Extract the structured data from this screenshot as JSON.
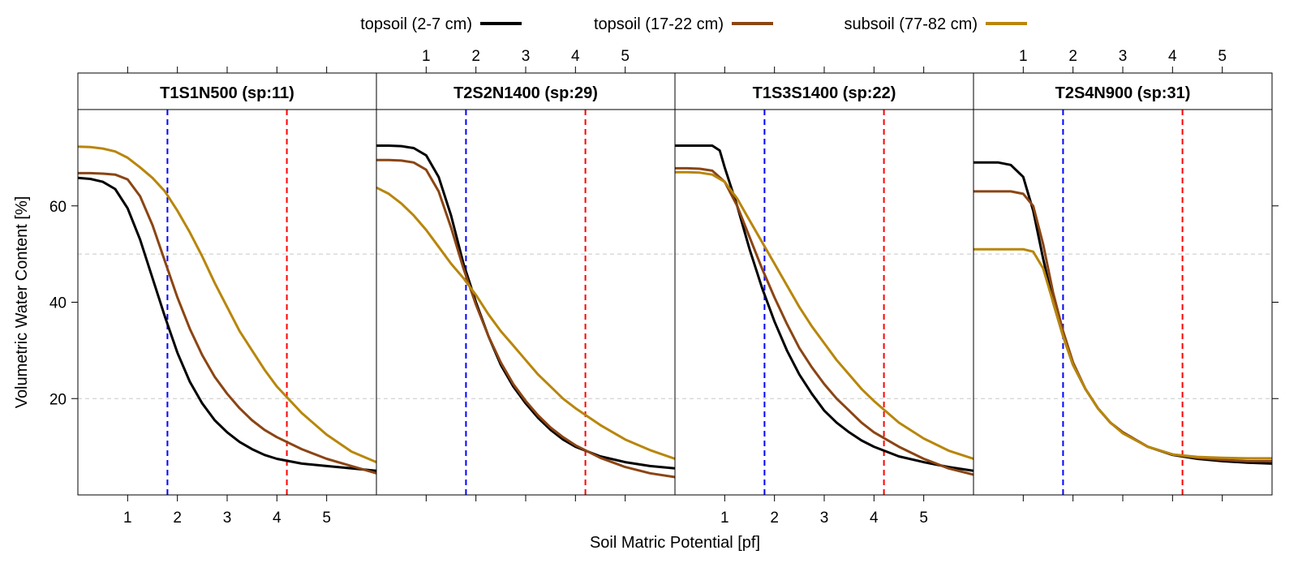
{
  "chart_data": {
    "type": "line",
    "xlabel": "Soil Matric Potential [pf]",
    "ylabel": "Volumetric Water Content [%]",
    "xlim": [
      0,
      6
    ],
    "ylim": [
      0,
      80
    ],
    "x_ticks": [
      1,
      2,
      3,
      4,
      5
    ],
    "y_ticks": [
      20,
      40,
      60
    ],
    "grid_lines_y": [
      20,
      50
    ],
    "reference_lines": [
      {
        "x": 1.8,
        "color": "#0000ff"
      },
      {
        "x": 4.2,
        "color": "#ff0000"
      }
    ],
    "legend": {
      "position": "top",
      "entries": [
        {
          "label": "topsoil (2-7 cm)",
          "color": "#000000"
        },
        {
          "label": "topsoil (17-22 cm)",
          "color": "#8b4513"
        },
        {
          "label": "subsoil (77-82 cm)",
          "color": "#b8860b"
        }
      ]
    },
    "panels": [
      {
        "title": "T1S1N500 (sp:11)",
        "series": [
          {
            "name": "topsoil (2-7 cm)",
            "color": "#000000",
            "x": [
              0,
              0.25,
              0.5,
              0.75,
              1,
              1.25,
              1.5,
              1.75,
              2,
              2.25,
              2.5,
              2.75,
              3,
              3.25,
              3.5,
              3.75,
              4,
              4.5,
              5,
              5.5,
              6
            ],
            "y": [
              65.8,
              65.6,
              65,
              63.5,
              59.5,
              53,
              45,
              37,
              29.5,
              23.5,
              19,
              15.5,
              13,
              11,
              9.5,
              8.3,
              7.5,
              6.5,
              6,
              5.5,
              5
            ]
          },
          {
            "name": "topsoil (17-22 cm)",
            "color": "#8b4513",
            "x": [
              0,
              0.25,
              0.5,
              0.75,
              1,
              1.25,
              1.5,
              1.75,
              2,
              2.25,
              2.5,
              2.75,
              3,
              3.25,
              3.5,
              3.75,
              4,
              4.5,
              5,
              5.5,
              6
            ],
            "y": [
              66.8,
              66.8,
              66.7,
              66.5,
              65.5,
              62,
              56,
              48.5,
              41,
              34.5,
              29,
              24.5,
              21,
              18,
              15.5,
              13.5,
              12,
              9.5,
              7.5,
              6,
              4.5
            ]
          },
          {
            "name": "subsoil (77-82 cm)",
            "color": "#b8860b",
            "x": [
              0,
              0.25,
              0.5,
              0.75,
              1,
              1.25,
              1.5,
              1.75,
              2,
              2.25,
              2.5,
              2.75,
              3,
              3.25,
              3.5,
              3.75,
              4,
              4.5,
              5,
              5.5,
              6
            ],
            "y": [
              72.3,
              72.2,
              71.9,
              71.3,
              70,
              68,
              65.8,
              63,
              59,
              54.5,
              49.5,
              44,
              39,
              34,
              30,
              26,
              22.5,
              17,
              12.5,
              9,
              6.8
            ]
          }
        ]
      },
      {
        "title": "T2S2N1400 (sp:29)",
        "series": [
          {
            "name": "topsoil (2-7 cm)",
            "color": "#000000",
            "x": [
              0,
              0.25,
              0.5,
              0.75,
              1,
              1.25,
              1.5,
              1.75,
              2,
              2.25,
              2.5,
              2.75,
              3,
              3.25,
              3.5,
              3.75,
              4,
              4.5,
              5,
              5.5,
              6
            ],
            "y": [
              72.5,
              72.5,
              72.4,
              72,
              70.5,
              66,
              58,
              48,
              40,
              33,
              27,
              22.5,
              19,
              16,
              13.5,
              11.5,
              10,
              8,
              6.8,
              6,
              5.5
            ]
          },
          {
            "name": "topsoil (17-22 cm)",
            "color": "#8b4513",
            "x": [
              0,
              0.25,
              0.5,
              0.75,
              1,
              1.25,
              1.5,
              1.75,
              2,
              2.25,
              2.5,
              2.75,
              3,
              3.25,
              3.5,
              3.75,
              4,
              4.5,
              5,
              5.5,
              6
            ],
            "y": [
              69.5,
              69.5,
              69.4,
              69,
              67.5,
              63,
              55.5,
              47,
              39.5,
              33,
              27.5,
              23,
              19.5,
              16.5,
              14,
              12,
              10.3,
              7.7,
              5.8,
              4.5,
              3.7
            ]
          },
          {
            "name": "subsoil (77-82 cm)",
            "color": "#b8860b",
            "x": [
              0,
              0.25,
              0.5,
              0.75,
              1,
              1.25,
              1.5,
              1.75,
              2,
              2.25,
              2.5,
              2.75,
              3,
              3.25,
              3.5,
              3.75,
              4,
              4.5,
              5,
              5.5,
              6
            ],
            "y": [
              63.8,
              62.5,
              60.5,
              58,
              55,
              51.5,
              48,
              45,
              41.5,
              37.5,
              34,
              31,
              28,
              25,
              22.5,
              20,
              18,
              14.5,
              11.5,
              9.3,
              7.5
            ]
          }
        ]
      },
      {
        "title": "T1S3S1400 (sp:22)",
        "series": [
          {
            "name": "topsoil (2-7 cm)",
            "color": "#000000",
            "x": [
              0,
              0.25,
              0.5,
              0.75,
              0.9,
              1,
              1.25,
              1.5,
              1.75,
              2,
              2.25,
              2.5,
              2.75,
              3,
              3.25,
              3.5,
              3.75,
              4,
              4.5,
              5,
              5.5,
              6
            ],
            "y": [
              72.5,
              72.5,
              72.5,
              72.5,
              71.5,
              68,
              60,
              51,
              43,
              36,
              30,
              25,
              21,
              17.5,
              15,
              13,
              11.3,
              10,
              8,
              6.8,
              5.8,
              5
            ]
          },
          {
            "name": "topsoil (17-22 cm)",
            "color": "#8b4513",
            "x": [
              0,
              0.25,
              0.5,
              0.75,
              1,
              1.25,
              1.5,
              1.75,
              2,
              2.25,
              2.5,
              2.75,
              3,
              3.25,
              3.5,
              3.75,
              4,
              4.5,
              5,
              5.5,
              6
            ],
            "y": [
              67.8,
              67.8,
              67.7,
              67.3,
              65,
              60,
              53.5,
              47,
              41,
              35.5,
              30.5,
              26.5,
              23,
              20,
              17.5,
              15,
              13,
              10,
              7.5,
              5.5,
              4.2
            ]
          },
          {
            "name": "subsoil (77-82 cm)",
            "color": "#b8860b",
            "x": [
              0,
              0.25,
              0.5,
              0.75,
              1,
              1.25,
              1.5,
              1.75,
              2,
              2.25,
              2.5,
              2.75,
              3,
              3.25,
              3.5,
              3.75,
              4,
              4.5,
              5,
              5.5,
              6
            ],
            "y": [
              67,
              67,
              66.9,
              66.5,
              65,
              61.5,
              57,
              52.5,
              48,
              43.5,
              39,
              35,
              31.5,
              28,
              25,
              22,
              19.5,
              15,
              11.7,
              9.2,
              7.5
            ]
          }
        ]
      },
      {
        "title": "T2S4N900 (sp:31)",
        "series": [
          {
            "name": "topsoil (2-7 cm)",
            "color": "#000000",
            "x": [
              0,
              0.25,
              0.5,
              0.75,
              1,
              1.2,
              1.4,
              1.6,
              1.8,
              2,
              2.25,
              2.5,
              2.75,
              3,
              3.5,
              4,
              4.5,
              5,
              5.5,
              6
            ],
            "y": [
              69,
              69,
              69,
              68.5,
              66,
              59,
              49,
              40,
              33,
              27,
              22,
              18,
              15,
              13,
              10,
              8.3,
              7.5,
              7,
              6.7,
              6.5
            ]
          },
          {
            "name": "topsoil (17-22 cm)",
            "color": "#8b4513",
            "x": [
              0,
              0.25,
              0.5,
              0.75,
              1,
              1.2,
              1.4,
              1.6,
              1.8,
              2,
              2.25,
              2.5,
              2.75,
              3,
              3.5,
              4,
              4.5,
              5,
              5.5,
              6
            ],
            "y": [
              63,
              63,
              63,
              63,
              62.5,
              60,
              52,
              42,
              34,
              27.5,
              22,
              18,
              15,
              13,
              10,
              8.4,
              7.7,
              7.3,
              7,
              7
            ]
          },
          {
            "name": "subsoil (77-82 cm)",
            "color": "#b8860b",
            "x": [
              0,
              0.25,
              0.5,
              0.75,
              1,
              1.2,
              1.4,
              1.6,
              1.8,
              2,
              2.25,
              2.5,
              2.75,
              3,
              3.5,
              4,
              4.5,
              5,
              5.5,
              6
            ],
            "y": [
              51,
              51,
              51,
              51,
              51,
              50.5,
              47,
              40,
              33,
              27,
              22,
              18,
              15,
              12.8,
              10,
              8.4,
              7.9,
              7.7,
              7.6,
              7.6
            ]
          }
        ]
      }
    ]
  }
}
